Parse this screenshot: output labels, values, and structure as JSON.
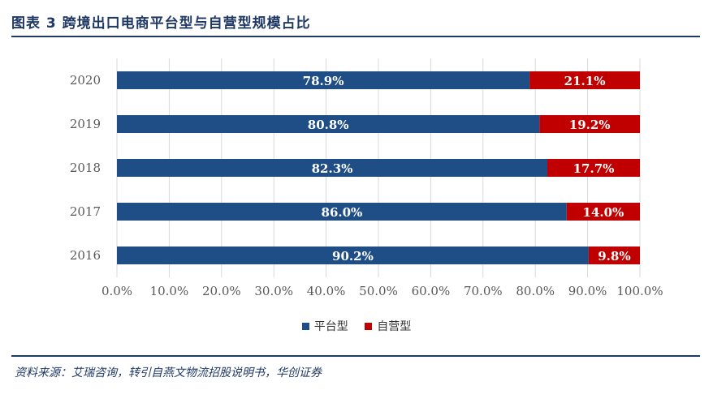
{
  "header": {
    "title": "图表 3   跨境出口电商平台型与自营型规模占比"
  },
  "footer": {
    "source": "资料来源：艾瑞咨询，转引自燕文物流招股说明书，华创证券"
  },
  "colors": {
    "platform": "#1f4e87",
    "self": "#c00000",
    "rule": "#1f3864"
  },
  "legend": {
    "platform_label": "平台型",
    "self_label": "自营型"
  },
  "chart_data": {
    "type": "bar",
    "orientation": "horizontal",
    "stacked": true,
    "categories": [
      "2020",
      "2019",
      "2018",
      "2017",
      "2016"
    ],
    "series": [
      {
        "name": "平台型",
        "values": [
          78.9,
          80.8,
          82.3,
          86.0,
          90.2
        ],
        "labels": [
          "78.9%",
          "80.8%",
          "82.3%",
          "86.0%",
          "90.2%"
        ]
      },
      {
        "name": "自营型",
        "values": [
          21.1,
          19.2,
          17.7,
          14.0,
          9.8
        ],
        "labels": [
          "21.1%",
          "19.2%",
          "17.7%",
          "14.0%",
          "9.8%"
        ]
      }
    ],
    "xlim": [
      0,
      100
    ],
    "xticks": [
      "0.0%",
      "10.0%",
      "20.0%",
      "30.0%",
      "40.0%",
      "50.0%",
      "60.0%",
      "70.0%",
      "80.0%",
      "90.0%",
      "100.0%"
    ],
    "grid": true,
    "legend_position": "bottom"
  }
}
